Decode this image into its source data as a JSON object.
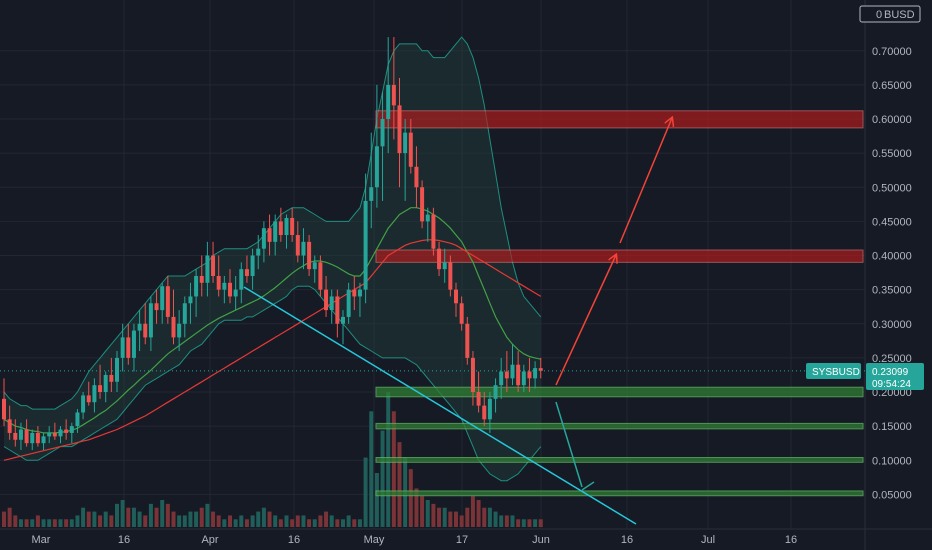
{
  "chart_data": {
    "type": "candlestick",
    "symbol": "SYSBUSD",
    "currency": "BUSD",
    "last_price": "0.23099",
    "countdown": "09:54:24",
    "x_ticks": [
      "Mar",
      "16",
      "Apr",
      "16",
      "May",
      "17",
      "Jun",
      "16",
      "Jul",
      "16"
    ],
    "y_ticks": [
      "0.70000",
      "0.65000",
      "0.60000",
      "0.55000",
      "0.50000",
      "0.45000",
      "0.40000",
      "0.35000",
      "0.30000",
      "0.25000",
      "0.20000",
      "0.15000",
      "0.10000",
      "0.05000"
    ],
    "top_tick_partial": "0",
    "ylim": [
      0.0,
      0.72
    ],
    "grid": true,
    "ohlc": [
      [
        0.19,
        0.22,
        0.15,
        0.16
      ],
      [
        0.16,
        0.18,
        0.13,
        0.14
      ],
      [
        0.14,
        0.16,
        0.12,
        0.13
      ],
      [
        0.13,
        0.155,
        0.115,
        0.145
      ],
      [
        0.145,
        0.16,
        0.12,
        0.125
      ],
      [
        0.125,
        0.145,
        0.115,
        0.14
      ],
      [
        0.14,
        0.15,
        0.12,
        0.125
      ],
      [
        0.125,
        0.14,
        0.115,
        0.135
      ],
      [
        0.135,
        0.15,
        0.125,
        0.14
      ],
      [
        0.14,
        0.155,
        0.13,
        0.135
      ],
      [
        0.135,
        0.15,
        0.125,
        0.145
      ],
      [
        0.145,
        0.16,
        0.13,
        0.14
      ],
      [
        0.14,
        0.155,
        0.125,
        0.15
      ],
      [
        0.15,
        0.175,
        0.14,
        0.17
      ],
      [
        0.17,
        0.2,
        0.16,
        0.195
      ],
      [
        0.195,
        0.215,
        0.18,
        0.185
      ],
      [
        0.185,
        0.22,
        0.17,
        0.21
      ],
      [
        0.21,
        0.24,
        0.19,
        0.2
      ],
      [
        0.2,
        0.23,
        0.185,
        0.225
      ],
      [
        0.225,
        0.25,
        0.2,
        0.215
      ],
      [
        0.215,
        0.26,
        0.2,
        0.25
      ],
      [
        0.25,
        0.3,
        0.23,
        0.28
      ],
      [
        0.28,
        0.3,
        0.24,
        0.25
      ],
      [
        0.25,
        0.3,
        0.23,
        0.29
      ],
      [
        0.29,
        0.32,
        0.26,
        0.3
      ],
      [
        0.3,
        0.33,
        0.27,
        0.28
      ],
      [
        0.28,
        0.34,
        0.26,
        0.33
      ],
      [
        0.33,
        0.35,
        0.3,
        0.32
      ],
      [
        0.32,
        0.36,
        0.3,
        0.355
      ],
      [
        0.355,
        0.37,
        0.3,
        0.31
      ],
      [
        0.31,
        0.35,
        0.27,
        0.28
      ],
      [
        0.28,
        0.32,
        0.26,
        0.3
      ],
      [
        0.3,
        0.34,
        0.28,
        0.33
      ],
      [
        0.33,
        0.36,
        0.3,
        0.34
      ],
      [
        0.34,
        0.38,
        0.31,
        0.37
      ],
      [
        0.37,
        0.4,
        0.34,
        0.36
      ],
      [
        0.36,
        0.42,
        0.34,
        0.4
      ],
      [
        0.4,
        0.42,
        0.36,
        0.37
      ],
      [
        0.37,
        0.4,
        0.34,
        0.35
      ],
      [
        0.35,
        0.37,
        0.33,
        0.36
      ],
      [
        0.36,
        0.38,
        0.33,
        0.34
      ],
      [
        0.34,
        0.37,
        0.32,
        0.35
      ],
      [
        0.35,
        0.39,
        0.33,
        0.38
      ],
      [
        0.38,
        0.4,
        0.36,
        0.37
      ],
      [
        0.37,
        0.41,
        0.35,
        0.4
      ],
      [
        0.4,
        0.43,
        0.38,
        0.41
      ],
      [
        0.41,
        0.45,
        0.39,
        0.44
      ],
      [
        0.44,
        0.46,
        0.4,
        0.42
      ],
      [
        0.42,
        0.46,
        0.4,
        0.45
      ],
      [
        0.45,
        0.47,
        0.42,
        0.43
      ],
      [
        0.43,
        0.46,
        0.41,
        0.455
      ],
      [
        0.455,
        0.47,
        0.42,
        0.43
      ],
      [
        0.43,
        0.45,
        0.39,
        0.4
      ],
      [
        0.4,
        0.44,
        0.38,
        0.42
      ],
      [
        0.42,
        0.43,
        0.37,
        0.38
      ],
      [
        0.38,
        0.4,
        0.36,
        0.39
      ],
      [
        0.39,
        0.4,
        0.34,
        0.35
      ],
      [
        0.35,
        0.37,
        0.31,
        0.32
      ],
      [
        0.32,
        0.35,
        0.3,
        0.34
      ],
      [
        0.34,
        0.35,
        0.28,
        0.3
      ],
      [
        0.3,
        0.32,
        0.27,
        0.31
      ],
      [
        0.31,
        0.36,
        0.3,
        0.35
      ],
      [
        0.35,
        0.37,
        0.32,
        0.34
      ],
      [
        0.34,
        0.36,
        0.31,
        0.35
      ],
      [
        0.35,
        0.52,
        0.33,
        0.48
      ],
      [
        0.48,
        0.58,
        0.44,
        0.5
      ],
      [
        0.5,
        0.65,
        0.47,
        0.56
      ],
      [
        0.56,
        0.64,
        0.48,
        0.6
      ],
      [
        0.6,
        0.72,
        0.55,
        0.65
      ],
      [
        0.65,
        0.72,
        0.57,
        0.62
      ],
      [
        0.62,
        0.66,
        0.5,
        0.55
      ],
      [
        0.55,
        0.6,
        0.48,
        0.58
      ],
      [
        0.58,
        0.6,
        0.52,
        0.53
      ],
      [
        0.53,
        0.56,
        0.47,
        0.5
      ],
      [
        0.5,
        0.51,
        0.44,
        0.45
      ],
      [
        0.45,
        0.47,
        0.42,
        0.46
      ],
      [
        0.46,
        0.47,
        0.4,
        0.41
      ],
      [
        0.41,
        0.42,
        0.37,
        0.38
      ],
      [
        0.38,
        0.41,
        0.36,
        0.39
      ],
      [
        0.39,
        0.4,
        0.34,
        0.35
      ],
      [
        0.35,
        0.36,
        0.31,
        0.33
      ],
      [
        0.33,
        0.34,
        0.29,
        0.3
      ],
      [
        0.3,
        0.31,
        0.24,
        0.25
      ],
      [
        0.25,
        0.26,
        0.18,
        0.2
      ],
      [
        0.2,
        0.23,
        0.17,
        0.18
      ],
      [
        0.18,
        0.2,
        0.15,
        0.16
      ],
      [
        0.16,
        0.2,
        0.14,
        0.19
      ],
      [
        0.19,
        0.22,
        0.17,
        0.21
      ],
      [
        0.21,
        0.25,
        0.19,
        0.23
      ],
      [
        0.23,
        0.26,
        0.2,
        0.22
      ],
      [
        0.22,
        0.27,
        0.21,
        0.24
      ],
      [
        0.24,
        0.26,
        0.2,
        0.21
      ],
      [
        0.21,
        0.24,
        0.2,
        0.23
      ],
      [
        0.23,
        0.25,
        0.2,
        0.22
      ],
      [
        0.22,
        0.245,
        0.205,
        0.235
      ],
      [
        0.235,
        0.25,
        0.22,
        0.231
      ]
    ],
    "volume": [
      4,
      5,
      3,
      2,
      2,
      2,
      3,
      2,
      2,
      2,
      2,
      2,
      2,
      3,
      5,
      4,
      4,
      3,
      4,
      3,
      6,
      7,
      5,
      5,
      4,
      3,
      6,
      5,
      7,
      6,
      4,
      3,
      3,
      4,
      4,
      5,
      6,
      4,
      3,
      2,
      3,
      2,
      3,
      2,
      3,
      4,
      5,
      4,
      3,
      2,
      3,
      2,
      3,
      3,
      2,
      2,
      3,
      4,
      3,
      2,
      2,
      3,
      2,
      2,
      18,
      30,
      14,
      25,
      35,
      30,
      22,
      18,
      15,
      10,
      8,
      7,
      6,
      5,
      5,
      4,
      4,
      3,
      5,
      8,
      7,
      5,
      5,
      4,
      3,
      3,
      3,
      2,
      2,
      2,
      2,
      2
    ],
    "volume_max": 35,
    "bollinger_upper": [
      0.2,
      0.19,
      0.185,
      0.18,
      0.18,
      0.175,
      0.175,
      0.175,
      0.175,
      0.175,
      0.18,
      0.185,
      0.19,
      0.2,
      0.215,
      0.23,
      0.24,
      0.25,
      0.26,
      0.27,
      0.28,
      0.29,
      0.3,
      0.31,
      0.32,
      0.33,
      0.34,
      0.35,
      0.36,
      0.37,
      0.37,
      0.37,
      0.37,
      0.375,
      0.38,
      0.385,
      0.39,
      0.4,
      0.405,
      0.41,
      0.41,
      0.41,
      0.41,
      0.41,
      0.415,
      0.42,
      0.43,
      0.44,
      0.45,
      0.46,
      0.465,
      0.47,
      0.47,
      0.47,
      0.465,
      0.46,
      0.455,
      0.45,
      0.45,
      0.45,
      0.45,
      0.45,
      0.46,
      0.47,
      0.5,
      0.55,
      0.6,
      0.64,
      0.68,
      0.7,
      0.71,
      0.71,
      0.71,
      0.71,
      0.7,
      0.7,
      0.69,
      0.69,
      0.69,
      0.7,
      0.71,
      0.72,
      0.71,
      0.69,
      0.66,
      0.62,
      0.57,
      0.52,
      0.47,
      0.43,
      0.39,
      0.36,
      0.34,
      0.33,
      0.32,
      0.31
    ],
    "bollinger_lower": [
      0.12,
      0.115,
      0.11,
      0.105,
      0.1,
      0.1,
      0.1,
      0.105,
      0.11,
      0.115,
      0.12,
      0.12,
      0.12,
      0.125,
      0.13,
      0.135,
      0.14,
      0.145,
      0.15,
      0.155,
      0.16,
      0.17,
      0.18,
      0.19,
      0.2,
      0.21,
      0.215,
      0.22,
      0.225,
      0.23,
      0.235,
      0.24,
      0.25,
      0.26,
      0.265,
      0.27,
      0.28,
      0.29,
      0.3,
      0.305,
      0.305,
      0.305,
      0.305,
      0.31,
      0.31,
      0.315,
      0.32,
      0.325,
      0.33,
      0.335,
      0.34,
      0.35,
      0.355,
      0.355,
      0.355,
      0.35,
      0.34,
      0.33,
      0.32,
      0.31,
      0.3,
      0.29,
      0.28,
      0.27,
      0.265,
      0.26,
      0.255,
      0.25,
      0.25,
      0.25,
      0.25,
      0.25,
      0.245,
      0.24,
      0.23,
      0.22,
      0.21,
      0.2,
      0.19,
      0.18,
      0.17,
      0.16,
      0.14,
      0.12,
      0.1,
      0.09,
      0.08,
      0.075,
      0.07,
      0.07,
      0.075,
      0.08,
      0.09,
      0.1,
      0.11,
      0.12
    ],
    "ma_green": [
      0.16,
      0.155,
      0.15,
      0.148,
      0.145,
      0.143,
      0.142,
      0.14,
      0.14,
      0.14,
      0.141,
      0.142,
      0.144,
      0.147,
      0.152,
      0.157,
      0.162,
      0.168,
      0.173,
      0.18,
      0.187,
      0.195,
      0.203,
      0.21,
      0.218,
      0.225,
      0.232,
      0.24,
      0.248,
      0.256,
      0.262,
      0.268,
      0.274,
      0.28,
      0.286,
      0.292,
      0.298,
      0.303,
      0.308,
      0.312,
      0.316,
      0.32,
      0.324,
      0.328,
      0.332,
      0.336,
      0.341,
      0.347,
      0.353,
      0.36,
      0.367,
      0.374,
      0.38,
      0.385,
      0.39,
      0.392,
      0.392,
      0.39,
      0.387,
      0.383,
      0.378,
      0.373,
      0.37,
      0.37,
      0.38,
      0.395,
      0.41,
      0.425,
      0.44,
      0.45,
      0.46,
      0.465,
      0.47,
      0.47,
      0.468,
      0.465,
      0.46,
      0.455,
      0.448,
      0.44,
      0.43,
      0.42,
      0.405,
      0.39,
      0.37,
      0.35,
      0.33,
      0.31,
      0.295,
      0.28,
      0.27,
      0.262,
      0.256,
      0.252,
      0.25,
      0.248
    ],
    "ma_red": [
      0.1,
      0.102,
      0.104,
      0.106,
      0.108,
      0.11,
      0.112,
      0.114,
      0.116,
      0.118,
      0.12,
      0.122,
      0.124,
      0.126,
      0.128,
      0.13,
      0.133,
      0.136,
      0.139,
      0.142,
      0.145,
      0.149,
      0.153,
      0.157,
      0.161,
      0.165,
      0.17,
      0.175,
      0.18,
      0.185,
      0.19,
      0.195,
      0.2,
      0.205,
      0.21,
      0.215,
      0.22,
      0.225,
      0.23,
      0.235,
      0.24,
      0.245,
      0.25,
      0.255,
      0.26,
      0.265,
      0.27,
      0.275,
      0.28,
      0.285,
      0.29,
      0.295,
      0.3,
      0.305,
      0.31,
      0.315,
      0.32,
      0.325,
      0.33,
      0.335,
      0.34,
      0.345,
      0.35,
      0.355,
      0.36,
      0.37,
      0.38,
      0.39,
      0.4,
      0.405,
      0.41,
      0.415,
      0.418,
      0.42,
      0.422,
      0.423,
      0.423,
      0.422,
      0.42,
      0.418,
      0.415,
      0.41,
      0.405,
      0.4,
      0.395,
      0.39,
      0.385,
      0.38,
      0.375,
      0.37,
      0.365,
      0.36,
      0.355,
      0.35,
      0.345,
      0.34
    ],
    "resistance_zones": [
      [
        0.587,
        0.612
      ],
      [
        0.39,
        0.408
      ]
    ],
    "support_zones": [
      [
        0.193,
        0.207
      ],
      [
        0.146,
        0.154
      ],
      [
        0.097,
        0.104
      ],
      [
        0.048,
        0.055
      ]
    ],
    "trendline": [
      [
        0.356,
        0.0
      ]
    ],
    "colors": {
      "background": "#161a25",
      "grid": "#232733",
      "up": "#26a69a",
      "down": "#ef5350",
      "volume_up": "#1f5e59",
      "volume_down": "#7a3336",
      "bollinger": "#1e8f80",
      "bollinger_fill": "#1f3d3a",
      "ma_green": "#43a047",
      "ma_red": "#e53935",
      "resistance": "#b71c1c",
      "support": "#2e7d32",
      "trendline": "#26c6da",
      "arrow_up": "#f44336",
      "arrow_down": "#26a69a",
      "price_label": "#26a69a",
      "axis_text": "#b2b5be"
    }
  }
}
